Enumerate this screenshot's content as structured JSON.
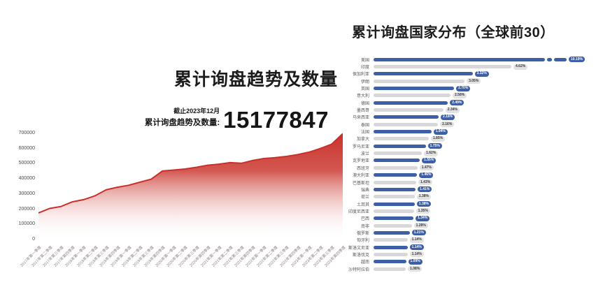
{
  "left_chart": {
    "title": "累计询盘趋势及数量",
    "as_of": "截止2023年12月",
    "total_label": "累计询盘趋势及数量:",
    "total_value": "15177847"
  },
  "right_chart": {
    "title": "累计询盘国家分布（全球前30）"
  },
  "colors": {
    "area_line": "#c9302a",
    "area_fill_top": "#c9322b",
    "bar_blue": "#3d5fa5",
    "bar_gray": "#d8d8d8",
    "badge_gray_bg": "#e2e2e2"
  },
  "chart_data": [
    {
      "type": "area",
      "title": "累计询盘趋势及数量",
      "xlabel": "",
      "ylabel": "",
      "ylim": [
        0,
        700000
      ],
      "y_ticks": [
        700000,
        600000,
        500000,
        400000,
        300000,
        200000,
        100000,
        0
      ],
      "grid": false,
      "annotation": {
        "as_of": "截止2023年12月",
        "total_label": "累计询盘趋势及数量:",
        "total": 15177847
      },
      "x": [
        "2017年第一季度",
        "2017年第二季度",
        "2017年第三季度",
        "2017年第四季度",
        "2018年第一季度",
        "2018年第二季度",
        "2018年第三季度",
        "2018年第四季度",
        "2019年第一季度",
        "2019年第二季度",
        "2019年第三季度",
        "2019年第四季度",
        "2020年第一季度",
        "2020年第二季度",
        "2020年第三季度",
        "2020年第四季度",
        "2021年第一季度",
        "2021年第二季度",
        "2021年第三季度",
        "2021年第四季度",
        "2022年第一季度",
        "2022年第二季度",
        "2022年第三季度",
        "2022年第四季度",
        "2023年第一季度",
        "2023年第二季度",
        "2023年第三季度",
        "2023年第四季度"
      ],
      "values": [
        175000,
        205000,
        218000,
        248000,
        263000,
        288000,
        328000,
        345000,
        358000,
        378000,
        398000,
        452000,
        458000,
        465000,
        476000,
        490000,
        497000,
        507000,
        503000,
        521000,
        534000,
        540000,
        548000,
        560000,
        576000,
        600000,
        628000,
        698000
      ]
    },
    {
      "type": "bar",
      "orientation": "horizontal",
      "title": "累计询盘国家分布（全球前30）",
      "unit": "%",
      "legend": "none",
      "axis_break_on_first_bar": true,
      "bar_colors_alternate": [
        "#3d5fa5",
        "#d8d8d8"
      ],
      "categories": [
        "美国",
        "印度",
        "保加利亚",
        "伊朗",
        "英国",
        "意大利",
        "德国",
        "墨西哥",
        "马来西亚",
        "泰国",
        "法国",
        "加拿大",
        "罗马尼亚",
        "波兰",
        "克罗地亚",
        "西班牙",
        "澳大利亚",
        "巴基斯坦",
        "瑞典",
        "荷兰",
        "土耳其",
        "印度尼西亚",
        "巴西",
        "南非",
        "俄罗斯",
        "匈牙利",
        "斯洛文尼亚",
        "斯洛伐克",
        "越南",
        "沙特阿拉伯"
      ],
      "values": [
        10.19,
        4.62,
        3.32,
        3.05,
        2.7,
        2.58,
        2.49,
        2.34,
        2.18,
        2.16,
        1.94,
        1.85,
        1.75,
        1.62,
        1.55,
        1.47,
        1.46,
        1.43,
        1.41,
        1.38,
        1.38,
        1.35,
        1.34,
        1.28,
        1.21,
        1.14,
        1.14,
        1.14,
        1.09,
        1.08
      ]
    }
  ]
}
